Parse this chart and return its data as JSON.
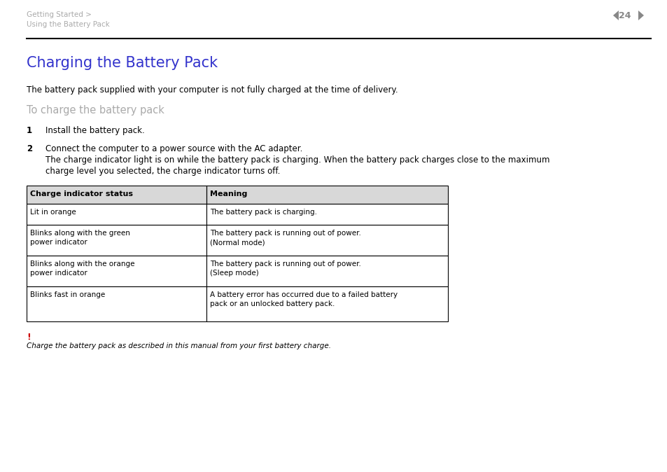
{
  "bg_color": "#ffffff",
  "header_breadcrumb1": "Getting Started >",
  "header_breadcrumb2": "Using the Battery Pack",
  "page_number": "24",
  "title": "Charging the Battery Pack",
  "title_color": "#3333cc",
  "subtitle_intro": "The battery pack supplied with your computer is not fully charged at the time of delivery.",
  "section_heading": "To charge the battery pack",
  "section_heading_color": "#aaaaaa",
  "step1_num": "1",
  "step1_text": "Install the battery pack.",
  "step2_num": "2",
  "step2_text_line1": "Connect the computer to a power source with the AC adapter.",
  "step2_text_line2": "The charge indicator light is on while the battery pack is charging. When the battery pack charges close to the maximum",
  "step2_text_line3": "charge level you selected, the charge indicator turns off.",
  "table_header_col1": "Charge indicator status",
  "table_header_col2": "Meaning",
  "table_rows": [
    [
      "Lit in orange",
      "The battery pack is charging."
    ],
    [
      "Blinks along with the green\npower indicator",
      "The battery pack is running out of power.\n(Normal mode)"
    ],
    [
      "Blinks along with the orange\npower indicator",
      "The battery pack is running out of power.\n(Sleep mode)"
    ],
    [
      "Blinks fast in orange",
      "A battery error has occurred due to a failed battery\npack or an unlocked battery pack."
    ]
  ],
  "warning_exclamation": "!",
  "warning_exclamation_color": "#cc0000",
  "warning_text": "Charge the battery pack as described in this manual from your first battery charge.",
  "breadcrumb_color": "#aaaaaa",
  "page_num_color": "#888888",
  "body_text_color": "#000000"
}
